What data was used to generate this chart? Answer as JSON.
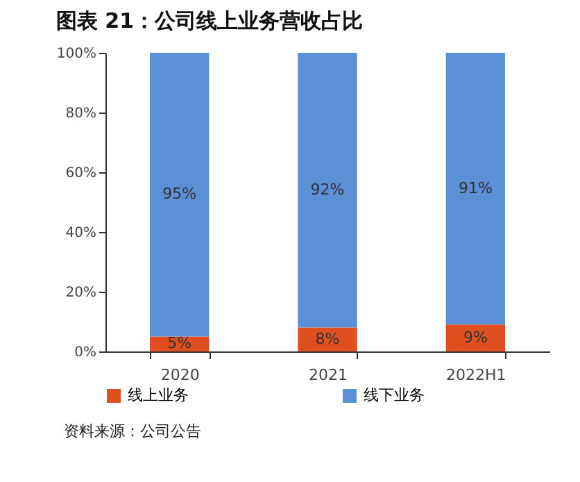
{
  "chart_data": {
    "type": "bar",
    "title": "图表 21：公司线上业务营收占比",
    "categories": [
      "2020",
      "2021",
      "2022H1"
    ],
    "stacked": true,
    "series": [
      {
        "name": "线上业务",
        "color": "#e04f1f",
        "values": [
          5,
          8,
          9
        ],
        "value_labels": [
          "5%",
          "8%",
          "9%"
        ]
      },
      {
        "name": "线下业务",
        "color": "#5b8fd6",
        "values": [
          95,
          92,
          91
        ],
        "value_labels": [
          "95%",
          "92%",
          "91%"
        ]
      }
    ],
    "ylim": [
      0,
      100
    ],
    "yticks": [
      {
        "value": 0,
        "label": "0%"
      },
      {
        "value": 20,
        "label": "20%"
      },
      {
        "value": 40,
        "label": "40%"
      },
      {
        "value": 60,
        "label": "60%"
      },
      {
        "value": 80,
        "label": "80%"
      },
      {
        "value": 100,
        "label": "100%"
      }
    ],
    "grid": false,
    "legend": "bottom",
    "annotations": [
      "资料来源：公司公告"
    ]
  }
}
